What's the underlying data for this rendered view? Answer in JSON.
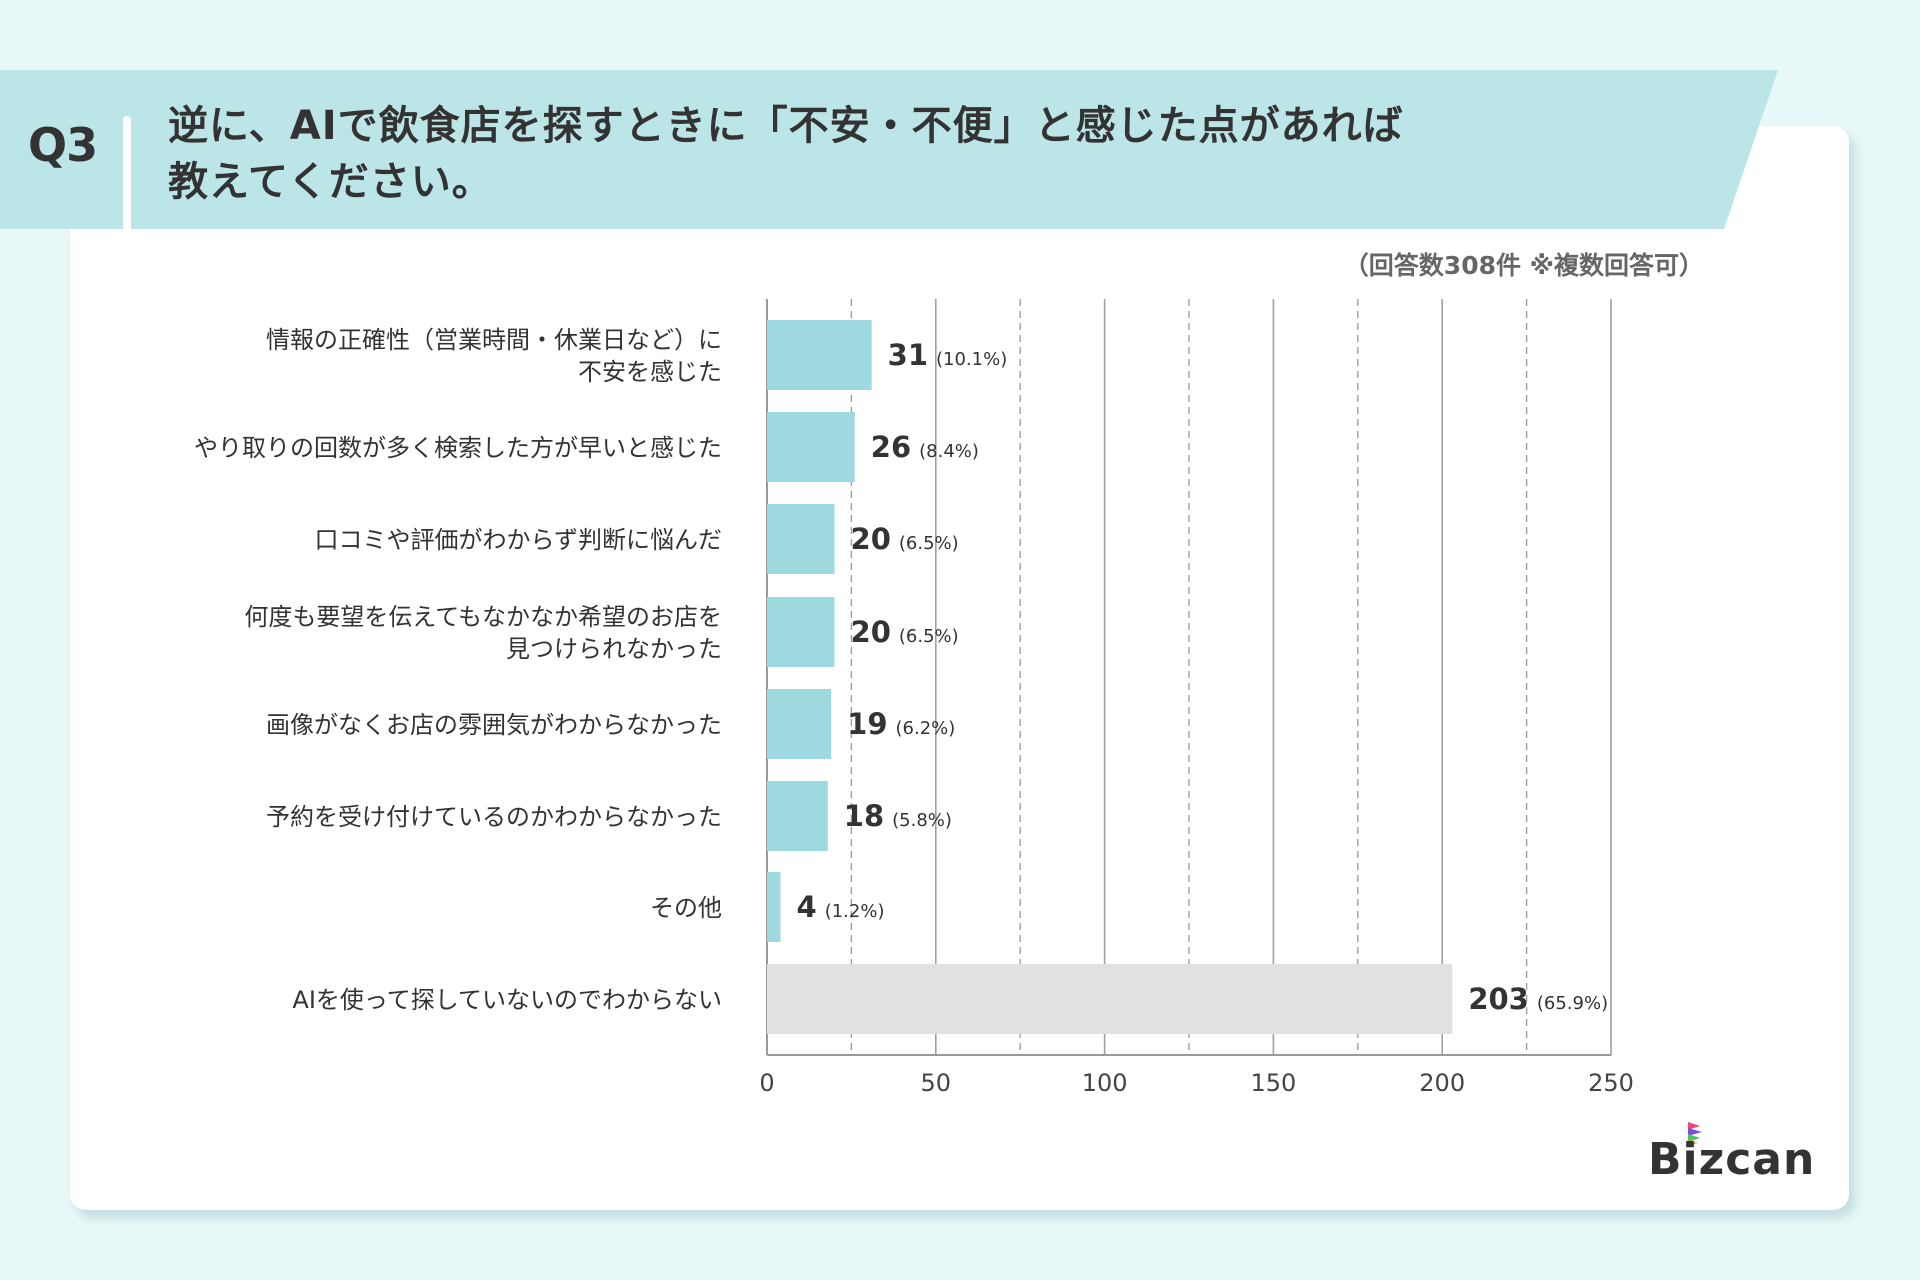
{
  "header": {
    "question_number": "Q3",
    "title_line1": "逆に、AIで飲食店を探すときに「不安・不便」と感じた点があれば",
    "title_line2": "教えてください。"
  },
  "note": "（回答数308件 ※複数回答可）",
  "logo": "Bizcan",
  "colors": {
    "bar": "#9ed9df",
    "bar_other": "#e1e1e1",
    "band": "#bce5e8",
    "background": "#e8f8f8"
  },
  "chart_data": {
    "type": "bar",
    "orientation": "horizontal",
    "categories": [
      [
        "情報の正確性（営業時間・休業日など）に",
        "不安を感じた"
      ],
      [
        "やり取りの回数が多く検索した方が早いと感じた"
      ],
      [
        "口コミや評価がわからず判断に悩んだ"
      ],
      [
        "何度も要望を伝えてもなかなか希望のお店を",
        "見つけられなかった"
      ],
      [
        "画像がなくお店の雰囲気がわからなかった"
      ],
      [
        "予約を受け付けているのかわからなかった"
      ],
      [
        "その他"
      ],
      [
        "AIを使って探していないのでわからない"
      ]
    ],
    "values": [
      31,
      26,
      20,
      20,
      19,
      18,
      4,
      203
    ],
    "percent_labels": [
      "(10.1%)",
      "(8.4%)",
      "(6.5%)",
      "(6.5%)",
      "(6.2%)",
      "(5.8%)",
      "(1.2%)",
      "(65.9%)"
    ],
    "xlim": [
      0,
      250
    ],
    "xticks": [
      0,
      50,
      100,
      150,
      200,
      250
    ],
    "grid": true,
    "xlabel": "",
    "ylabel": ""
  }
}
